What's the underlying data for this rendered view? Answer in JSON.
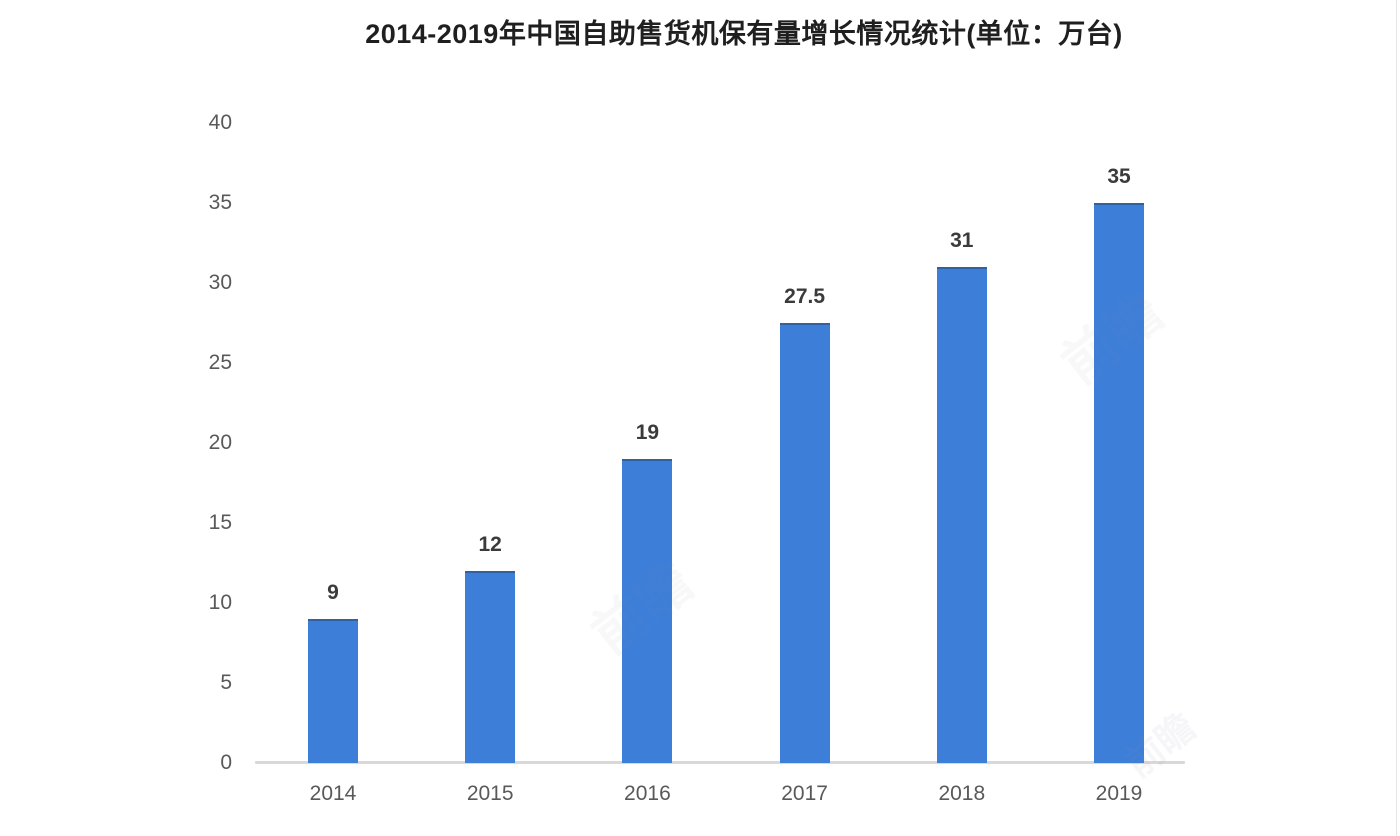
{
  "chart_data": {
    "type": "bar",
    "title": "2014-2019年中国自助售货机保有量增长情况统计(单位：万台)",
    "categories": [
      "2014",
      "2015",
      "2016",
      "2017",
      "2018",
      "2019"
    ],
    "values": [
      9,
      12,
      19,
      27.5,
      31,
      35
    ],
    "value_labels": [
      "9",
      "12",
      "19",
      "27.5",
      "31",
      "35"
    ],
    "y_ticks": [
      0,
      5,
      10,
      15,
      20,
      25,
      30,
      35,
      40
    ],
    "ylim": [
      0,
      40
    ],
    "xlabel": "",
    "ylabel": "",
    "grid": false,
    "legend_position": "none",
    "bar_color": "#3D7ED9",
    "axis_line_color": "#D8D8D8",
    "tick_label_color": "#595959",
    "value_label_color": "#3B3B3B",
    "title_color": "#1F1F1F"
  },
  "watermark": {
    "text": "前瞻",
    "color": "#8C8CA8"
  }
}
